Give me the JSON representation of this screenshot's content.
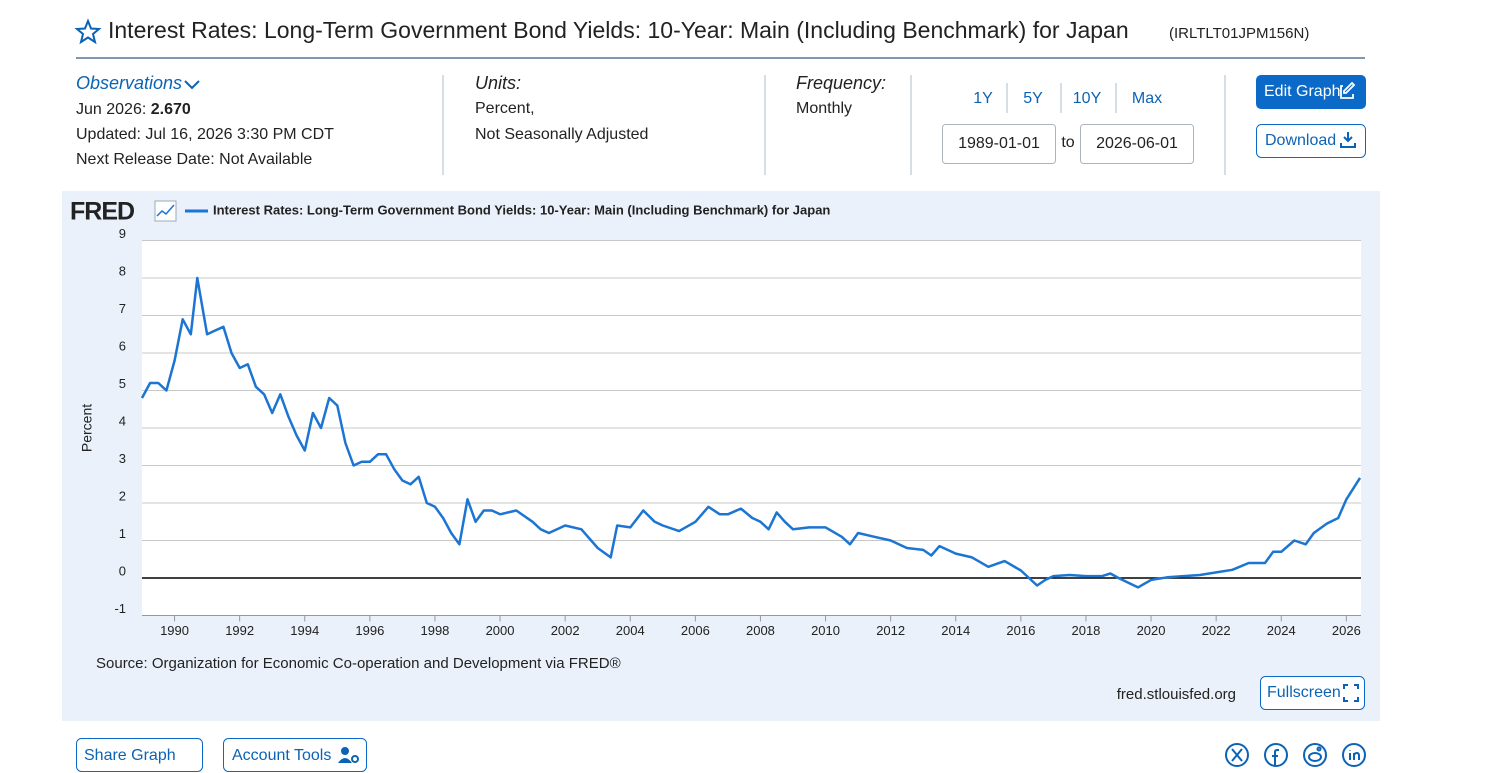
{
  "header": {
    "title": "Interest Rates: Long-Term Government Bond Yields: 10-Year: Main (Including Benchmark) for Japan",
    "series_id": "(IRLTLT01JPM156N)"
  },
  "observations": {
    "label": "Observations",
    "latest_date": "Jun 2026:",
    "latest_value": "2.670",
    "updated": "Updated: Jul 16, 2026 3:30 PM CDT",
    "next_release": "Next Release Date: Not Available"
  },
  "units": {
    "label": "Units:",
    "lines": [
      "Percent,",
      "Not Seasonally Adjusted"
    ]
  },
  "frequency": {
    "label": "Frequency:",
    "value": "Monthly"
  },
  "range": {
    "buttons": [
      "1Y",
      "5Y",
      "10Y",
      "Max"
    ],
    "start": "1989-01-01",
    "to": "to",
    "end": "2026-06-01"
  },
  "actions": {
    "edit": "Edit Graph",
    "download": "Download"
  },
  "chart_footer": {
    "logo": "FRED",
    "source": "Source: Organization for Economic Co-operation and Development via FRED®",
    "site": "fred.stlouisfed.org",
    "fullscreen": "Fullscreen"
  },
  "footer": {
    "share": "Share Graph",
    "account": "Account Tools"
  },
  "chart_data": {
    "type": "line",
    "ylabel": "Percent",
    "x": [
      1989.0,
      1989.25,
      1989.5,
      1989.75,
      1990.0,
      1990.25,
      1990.5,
      1990.7,
      1991.0,
      1991.25,
      1991.5,
      1991.75,
      1992.0,
      1992.25,
      1992.5,
      1992.75,
      1993.0,
      1993.25,
      1993.5,
      1993.75,
      1994.0,
      1994.25,
      1994.5,
      1994.75,
      1995.0,
      1995.25,
      1995.5,
      1995.75,
      1996.0,
      1996.25,
      1996.5,
      1996.75,
      1997.0,
      1997.25,
      1997.5,
      1997.75,
      1998.0,
      1998.25,
      1998.5,
      1998.75,
      1999.0,
      1999.25,
      1999.5,
      1999.75,
      2000.0,
      2000.5,
      2001.0,
      2001.25,
      2001.5,
      2002.0,
      2002.5,
      2003.0,
      2003.4,
      2003.6,
      2004.0,
      2004.4,
      2004.75,
      2005.0,
      2005.5,
      2006.0,
      2006.4,
      2006.75,
      2007.0,
      2007.4,
      2007.75,
      2008.0,
      2008.25,
      2008.5,
      2008.75,
      2009.0,
      2009.5,
      2010.0,
      2010.5,
      2010.75,
      2011.0,
      2011.5,
      2012.0,
      2012.5,
      2013.0,
      2013.25,
      2013.5,
      2014.0,
      2014.5,
      2015.0,
      2015.5,
      2016.0,
      2016.5,
      2016.75,
      2017.0,
      2017.5,
      2018.0,
      2018.5,
      2018.75,
      2019.0,
      2019.6,
      2020.0,
      2020.5,
      2021.0,
      2021.5,
      2022.0,
      2022.5,
      2023.0,
      2023.5,
      2023.75,
      2024.0,
      2024.4,
      2024.75,
      2025.0,
      2025.4,
      2025.75,
      2026.0,
      2026.42
    ],
    "series": [
      {
        "name": "Interest Rates: Long-Term Government Bond Yields: 10-Year: Main (Including Benchmark) for Japan",
        "color": "#1c75d2",
        "values": [
          4.8,
          5.2,
          5.2,
          5.0,
          5.8,
          6.9,
          6.5,
          8.0,
          6.5,
          6.6,
          6.7,
          6.0,
          5.6,
          5.7,
          5.1,
          4.9,
          4.4,
          4.9,
          4.3,
          3.8,
          3.4,
          4.4,
          4.0,
          4.8,
          4.6,
          3.6,
          3.0,
          3.1,
          3.1,
          3.3,
          3.3,
          2.9,
          2.6,
          2.5,
          2.7,
          2.0,
          1.9,
          1.6,
          1.2,
          0.9,
          2.1,
          1.5,
          1.8,
          1.8,
          1.7,
          1.8,
          1.5,
          1.3,
          1.2,
          1.4,
          1.3,
          0.8,
          0.55,
          1.4,
          1.35,
          1.8,
          1.5,
          1.4,
          1.25,
          1.5,
          1.9,
          1.7,
          1.7,
          1.85,
          1.6,
          1.5,
          1.3,
          1.75,
          1.5,
          1.3,
          1.35,
          1.35,
          1.1,
          0.9,
          1.2,
          1.1,
          1.0,
          0.8,
          0.75,
          0.6,
          0.85,
          0.65,
          0.55,
          0.3,
          0.45,
          0.2,
          -0.2,
          -0.05,
          0.05,
          0.08,
          0.05,
          0.05,
          0.12,
          0.0,
          -0.25,
          -0.05,
          0.02,
          0.05,
          0.08,
          0.15,
          0.22,
          0.4,
          0.4,
          0.7,
          0.7,
          1.0,
          0.9,
          1.2,
          1.45,
          1.6,
          2.1,
          2.67
        ]
      }
    ],
    "xlim": [
      1989.0,
      2026.45
    ],
    "xticks": [
      1990,
      1992,
      1994,
      1996,
      1998,
      2000,
      2002,
      2004,
      2006,
      2008,
      2010,
      2012,
      2014,
      2016,
      2018,
      2020,
      2022,
      2024,
      2026
    ],
    "ylim": [
      -1,
      9
    ],
    "yticks": [
      -1,
      0,
      1,
      2,
      3,
      4,
      5,
      6,
      7,
      8,
      9
    ],
    "grid": true,
    "zero_line": true
  }
}
